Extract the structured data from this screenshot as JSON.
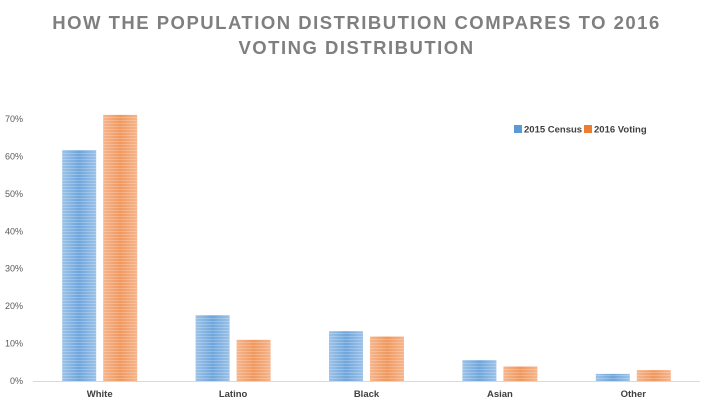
{
  "chart_data": {
    "type": "bar",
    "title_line1": "HOW THE POPULATION DISTRIBUTION COMPARES TO 2016",
    "title_line2": "VOTING DISTRIBUTION",
    "categories": [
      "White",
      "Latino",
      "Black",
      "Asian",
      "Other"
    ],
    "series": [
      {
        "name": "2015 Census",
        "values": [
          61.7,
          17.6,
          13.3,
          5.6,
          1.9
        ],
        "color": "#5b9bd5"
      },
      {
        "name": "2016 Voting",
        "values": [
          71.1,
          11.0,
          11.9,
          3.9,
          2.9
        ],
        "color": "#ed7d31"
      }
    ],
    "ylim": [
      0,
      70
    ],
    "yticks": [
      "0%",
      "10%",
      "20%",
      "30%",
      "40%",
      "50%",
      "60%",
      "70%"
    ],
    "grid": false,
    "legend": "top-right"
  }
}
